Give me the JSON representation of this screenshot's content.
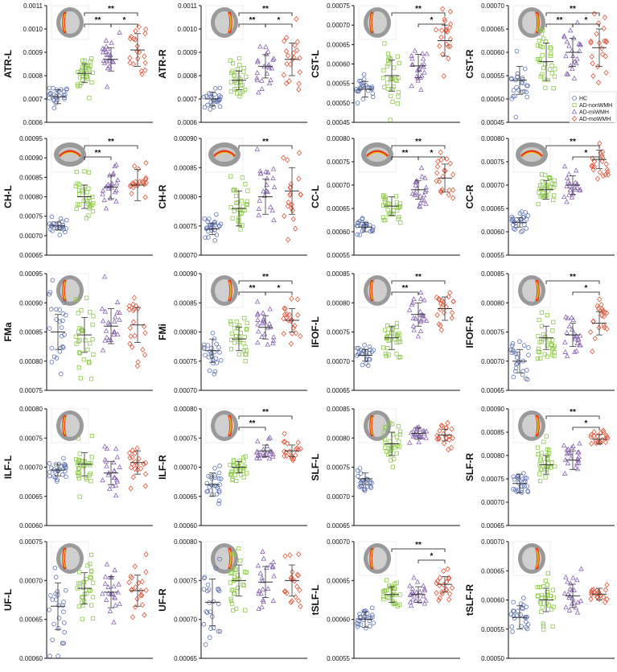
{
  "chart_data": {
    "type": "scatter",
    "groups": [
      "HC",
      "AD-nonWMH",
      "AD-miWMH",
      "AD-moWMH"
    ],
    "colors": [
      "#5b6fb0",
      "#8ec94a",
      "#8a68b4",
      "#e0583c"
    ],
    "markers": [
      "circle",
      "square",
      "triangle",
      "diamond"
    ],
    "legend": {
      "position": "inside top-right of CST-R panel",
      "entries": [
        "HC",
        "AD-nonWMH",
        "AD-miWMH",
        "AD-moWMH"
      ]
    },
    "panels": [
      {
        "label": "ATR-L",
        "yticks": [
          "0.0006",
          "0.0007",
          "0.0008",
          "0.0009",
          "0.0010",
          "0.0011"
        ],
        "ylim": [
          0.0006,
          0.0011
        ],
        "means": [
          0.00071,
          0.00081,
          0.00087,
          0.00091
        ],
        "sds": [
          3e-05,
          4e-05,
          5e-05,
          7e-05
        ],
        "n": [
          25,
          30,
          22,
          20
        ],
        "sig": [
          {
            "g1": 1,
            "g2": 2,
            "label": "**"
          },
          {
            "g1": 1,
            "g2": 3,
            "label": "**"
          },
          {
            "g1": 2,
            "g2": 3,
            "label": "*"
          }
        ]
      },
      {
        "label": "ATR-R",
        "yticks": [
          "0.0006",
          "0.0007",
          "0.0008",
          "0.0009",
          "0.0010",
          "0.0011"
        ],
        "ylim": [
          0.0006,
          0.0011
        ],
        "means": [
          0.0007,
          0.00078,
          0.00084,
          0.00087
        ],
        "sds": [
          3e-05,
          4e-05,
          5e-05,
          7e-05
        ],
        "n": [
          25,
          30,
          22,
          20
        ],
        "sig": [
          {
            "g1": 1,
            "g2": 2,
            "label": "**"
          },
          {
            "g1": 1,
            "g2": 3,
            "label": "**"
          },
          {
            "g1": 2,
            "g2": 3,
            "label": "*"
          }
        ]
      },
      {
        "label": "CST-L",
        "yticks": [
          "0.00045",
          "0.00050",
          "0.00055",
          "0.00060",
          "0.00065",
          "0.00070",
          "0.00075"
        ],
        "ylim": [
          0.00045,
          0.00075
        ],
        "means": [
          0.000535,
          0.00057,
          0.000595,
          0.00066
        ],
        "sds": [
          2e-05,
          4e-05,
          3e-05,
          4e-05
        ],
        "n": [
          25,
          30,
          22,
          20
        ],
        "sig": [
          {
            "g1": 1,
            "g2": 3,
            "label": "**"
          },
          {
            "g1": 2,
            "g2": 3,
            "label": "*"
          }
        ]
      },
      {
        "label": "CST-R",
        "yticks": [
          "0.00045",
          "0.00050",
          "0.00055",
          "0.00060",
          "0.00065",
          "0.00070"
        ],
        "ylim": [
          0.00045,
          0.0007
        ],
        "means": [
          0.00054,
          0.00058,
          0.0006,
          0.00061
        ],
        "sds": [
          3e-05,
          4e-05,
          3e-05,
          4e-05
        ],
        "n": [
          25,
          30,
          22,
          20
        ],
        "sig": [
          {
            "g1": 1,
            "g2": 2,
            "label": "**"
          },
          {
            "g1": 1,
            "g2": 3,
            "label": "**"
          },
          {
            "g1": 2,
            "g2": 3,
            "label": "*"
          }
        ]
      },
      {
        "label": "CH-L",
        "yticks": [
          "0.00065",
          "0.00070",
          "0.00075",
          "0.00080",
          "0.00085",
          "0.00090",
          "0.00095"
        ],
        "ylim": [
          0.00065,
          0.00095
        ],
        "means": [
          0.000725,
          0.0008,
          0.000825,
          0.00083
        ],
        "sds": [
          1e-05,
          3e-05,
          3e-05,
          4e-05
        ],
        "n": [
          25,
          30,
          22,
          20
        ],
        "sig": [
          {
            "g1": 1,
            "g2": 2,
            "label": "**"
          },
          {
            "g1": 1,
            "g2": 3,
            "label": "**"
          }
        ]
      },
      {
        "label": "CH-R",
        "yticks": [
          "0.00070",
          "0.00075",
          "0.00080",
          "0.00085",
          "0.00090"
        ],
        "ylim": [
          0.0007,
          0.0009
        ],
        "means": [
          0.000745,
          0.00078,
          0.0008,
          0.00081
        ],
        "sds": [
          1e-05,
          3e-05,
          3e-05,
          4e-05
        ],
        "n": [
          25,
          30,
          22,
          20
        ],
        "sig": [
          {
            "g1": 1,
            "g2": 3,
            "label": "**"
          }
        ]
      },
      {
        "label": "CC-L",
        "yticks": [
          "0.00055",
          "0.00060",
          "0.00065",
          "0.00070",
          "0.00075",
          "0.00080"
        ],
        "ylim": [
          0.00055,
          0.0008
        ],
        "means": [
          0.00061,
          0.000655,
          0.00069,
          0.000715
        ],
        "sds": [
          1e-05,
          2e-05,
          2e-05,
          3e-05
        ],
        "n": [
          25,
          30,
          22,
          20
        ],
        "sig": [
          {
            "g1": 1,
            "g2": 2,
            "label": "**"
          },
          {
            "g1": 1,
            "g2": 3,
            "label": "**"
          },
          {
            "g1": 2,
            "g2": 3,
            "label": "*"
          }
        ]
      },
      {
        "label": "CC-R",
        "yticks": [
          "0.00055",
          "0.00060",
          "0.00065",
          "0.00070",
          "0.00075",
          "0.00080"
        ],
        "ylim": [
          0.00055,
          0.0008
        ],
        "means": [
          0.00062,
          0.00069,
          0.0007,
          0.000755
        ],
        "sds": [
          1e-05,
          2e-05,
          2e-05,
          2e-05
        ],
        "n": [
          25,
          30,
          22,
          20
        ],
        "sig": [
          {
            "g1": 1,
            "g2": 3,
            "label": "**"
          },
          {
            "g1": 2,
            "g2": 3,
            "label": "*"
          }
        ]
      },
      {
        "label": "FMa",
        "yticks": [
          "0.00075",
          "0.00080",
          "0.00085",
          "0.00090",
          "0.00095"
        ],
        "ylim": [
          0.00075,
          0.00095
        ],
        "means": [
          0.00085,
          0.000845,
          0.00086,
          0.000862
        ],
        "sds": [
          3e-05,
          3e-05,
          3e-05,
          3e-05
        ],
        "n": [
          25,
          30,
          22,
          20
        ],
        "sig": []
      },
      {
        "label": "FMi",
        "yticks": [
          "0.00070",
          "0.00075",
          "0.00080",
          "0.00085",
          "0.00090"
        ],
        "ylim": [
          0.0007,
          0.0009
        ],
        "means": [
          0.000768,
          0.000788,
          0.000808,
          0.00082
        ],
        "sds": [
          2e-05,
          2e-05,
          2e-05,
          2e-05
        ],
        "n": [
          25,
          30,
          22,
          20
        ],
        "sig": [
          {
            "g1": 1,
            "g2": 2,
            "label": "**"
          },
          {
            "g1": 1,
            "g2": 3,
            "label": "**"
          },
          {
            "g1": 2,
            "g2": 3,
            "label": "*"
          }
        ]
      },
      {
        "label": "IFOF-L",
        "yticks": [
          "0.00065",
          "0.00070",
          "0.00075",
          "0.00080",
          "0.00085"
        ],
        "ylim": [
          0.00065,
          0.00085
        ],
        "means": [
          0.00071,
          0.00074,
          0.00078,
          0.00079
        ],
        "sds": [
          1e-05,
          2e-05,
          2e-05,
          2e-05
        ],
        "n": [
          25,
          30,
          22,
          20
        ],
        "sig": [
          {
            "g1": 1,
            "g2": 2,
            "label": "**"
          },
          {
            "g1": 1,
            "g2": 3,
            "label": "**"
          }
        ]
      },
      {
        "label": "IFOF-R",
        "yticks": [
          "0.00065",
          "0.00070",
          "0.00075",
          "0.00080",
          "0.00085"
        ],
        "ylim": [
          0.00065,
          0.00085
        ],
        "means": [
          0.0007,
          0.00074,
          0.000745,
          0.000765
        ],
        "sds": [
          2e-05,
          2e-05,
          2e-05,
          2e-05
        ],
        "n": [
          25,
          30,
          22,
          20
        ],
        "sig": [
          {
            "g1": 1,
            "g2": 3,
            "label": "**"
          },
          {
            "g1": 2,
            "g2": 3,
            "label": "*"
          }
        ]
      },
      {
        "label": "ILF-L",
        "yticks": [
          "0.00060",
          "0.00065",
          "0.00070",
          "0.00075",
          "0.00080"
        ],
        "ylim": [
          0.0006,
          0.0008
        ],
        "means": [
          0.000695,
          0.000705,
          0.00069,
          0.000708
        ],
        "sds": [
          1e-05,
          2e-05,
          2e-05,
          2e-05
        ],
        "n": [
          25,
          30,
          22,
          20
        ],
        "sig": []
      },
      {
        "label": "ILF-R",
        "yticks": [
          "0.00060",
          "0.00065",
          "0.00070",
          "0.00075",
          "0.00080"
        ],
        "ylim": [
          0.0006,
          0.0008
        ],
        "means": [
          0.00067,
          0.0007,
          0.000728,
          0.000728
        ],
        "sds": [
          2e-05,
          1e-05,
          1e-05,
          1e-05
        ],
        "n": [
          25,
          30,
          22,
          20
        ],
        "sig": [
          {
            "g1": 1,
            "g2": 2,
            "label": "**"
          },
          {
            "g1": 1,
            "g2": 3,
            "label": "**"
          }
        ]
      },
      {
        "label": "SLF-L",
        "yticks": [
          "0.00065",
          "0.00070",
          "0.00075",
          "0.00080",
          "0.00085"
        ],
        "ylim": [
          0.00065,
          0.00085
        ],
        "means": [
          0.00073,
          0.00079,
          0.000808,
          0.000805
        ],
        "sds": [
          1e-05,
          2e-05,
          1e-05,
          1e-05
        ],
        "n": [
          25,
          30,
          22,
          20
        ],
        "sig": []
      },
      {
        "label": "SLF-R",
        "yticks": [
          "0.00065",
          "0.00070",
          "0.00075",
          "0.00080",
          "0.00085",
          "0.00090"
        ],
        "ylim": [
          0.00065,
          0.0009
        ],
        "means": [
          0.00074,
          0.00078,
          0.00079,
          0.000835
        ],
        "sds": [
          2e-05,
          2e-05,
          2e-05,
          1e-05
        ],
        "n": [
          25,
          30,
          22,
          20
        ],
        "sig": [
          {
            "g1": 1,
            "g2": 3,
            "label": "**"
          },
          {
            "g1": 2,
            "g2": 3,
            "label": "*"
          }
        ]
      },
      {
        "label": "UF-L",
        "yticks": [
          "0.00060",
          "0.00065",
          "0.00070",
          "0.00075"
        ],
        "ylim": [
          0.0006,
          0.00075
        ],
        "means": [
          0.000667,
          0.00069,
          0.000685,
          0.000687
        ],
        "sds": [
          3e-05,
          2e-05,
          2e-05,
          2e-05
        ],
        "n": [
          25,
          30,
          22,
          20
        ],
        "sig": []
      },
      {
        "label": "UF-R",
        "yticks": [
          "0.00065",
          "0.00070",
          "0.00075",
          "0.00080"
        ],
        "ylim": [
          0.00065,
          0.0008
        ],
        "means": [
          0.000722,
          0.00075,
          0.000748,
          0.00075
        ],
        "sds": [
          3e-05,
          2e-05,
          2e-05,
          2e-05
        ],
        "n": [
          25,
          30,
          22,
          20
        ],
        "sig": []
      },
      {
        "label": "tSLF-L",
        "yticks": [
          "0.00055",
          "0.00060",
          "0.00065",
          "0.00070"
        ],
        "ylim": [
          0.00055,
          0.0007
        ],
        "means": [
          0.0006,
          0.000632,
          0.000632,
          0.000645
        ],
        "sds": [
          1e-05,
          1e-05,
          1e-05,
          1e-05
        ],
        "n": [
          25,
          30,
          22,
          20
        ],
        "sig": [
          {
            "g1": 1,
            "g2": 3,
            "label": "**"
          },
          {
            "g1": 2,
            "g2": 3,
            "label": "*"
          }
        ]
      },
      {
        "label": "tSLF-R",
        "yticks": [
          "0.00050",
          "0.00055",
          "0.00060",
          "0.00065",
          "0.00070"
        ],
        "ylim": [
          0.0005,
          0.0007
        ],
        "means": [
          0.00057,
          0.0006,
          0.000607,
          0.00061
        ],
        "sds": [
          2e-05,
          2e-05,
          2e-05,
          1e-05
        ],
        "n": [
          25,
          30,
          22,
          20
        ],
        "sig": []
      }
    ]
  }
}
